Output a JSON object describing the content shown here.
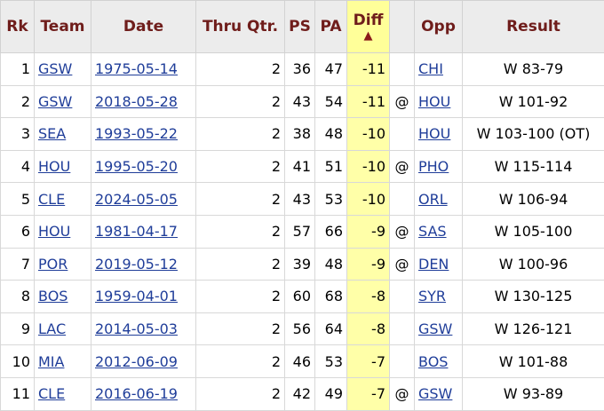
{
  "headers": {
    "rk": "Rk",
    "team": "Team",
    "date": "Date",
    "thru": "Thru Qtr.",
    "ps": "PS",
    "pa": "PA",
    "diff": "Diff",
    "diff_sort_indicator": "▲",
    "loc": "",
    "opp": "Opp",
    "result": "Result"
  },
  "rows": [
    {
      "rk": "1",
      "team": "GSW",
      "date": "1975-05-14",
      "thru": "2",
      "ps": "36",
      "pa": "47",
      "diff": "-11",
      "loc": "",
      "opp": "CHI",
      "result": "W 83-79"
    },
    {
      "rk": "2",
      "team": "GSW",
      "date": "2018-05-28",
      "thru": "2",
      "ps": "43",
      "pa": "54",
      "diff": "-11",
      "loc": "@",
      "opp": "HOU",
      "result": "W 101-92"
    },
    {
      "rk": "3",
      "team": "SEA",
      "date": "1993-05-22",
      "thru": "2",
      "ps": "38",
      "pa": "48",
      "diff": "-10",
      "loc": "",
      "opp": "HOU",
      "result": "W 103-100 (OT)"
    },
    {
      "rk": "4",
      "team": "HOU",
      "date": "1995-05-20",
      "thru": "2",
      "ps": "41",
      "pa": "51",
      "diff": "-10",
      "loc": "@",
      "opp": "PHO",
      "result": "W 115-114"
    },
    {
      "rk": "5",
      "team": "CLE",
      "date": "2024-05-05",
      "thru": "2",
      "ps": "43",
      "pa": "53",
      "diff": "-10",
      "loc": "",
      "opp": "ORL",
      "result": "W 106-94"
    },
    {
      "rk": "6",
      "team": "HOU",
      "date": "1981-04-17",
      "thru": "2",
      "ps": "57",
      "pa": "66",
      "diff": "-9",
      "loc": "@",
      "opp": "SAS",
      "result": "W 105-100"
    },
    {
      "rk": "7",
      "team": "POR",
      "date": "2019-05-12",
      "thru": "2",
      "ps": "39",
      "pa": "48",
      "diff": "-9",
      "loc": "@",
      "opp": "DEN",
      "result": "W 100-96"
    },
    {
      "rk": "8",
      "team": "BOS",
      "date": "1959-04-01",
      "thru": "2",
      "ps": "60",
      "pa": "68",
      "diff": "-8",
      "loc": "",
      "opp": "SYR",
      "result": "W 130-125"
    },
    {
      "rk": "9",
      "team": "LAC",
      "date": "2014-05-03",
      "thru": "2",
      "ps": "56",
      "pa": "64",
      "diff": "-8",
      "loc": "",
      "opp": "GSW",
      "result": "W 126-121"
    },
    {
      "rk": "10",
      "team": "MIA",
      "date": "2012-06-09",
      "thru": "2",
      "ps": "46",
      "pa": "53",
      "diff": "-7",
      "loc": "",
      "opp": "BOS",
      "result": "W 101-88"
    },
    {
      "rk": "11",
      "team": "CLE",
      "date": "2016-06-19",
      "thru": "2",
      "ps": "42",
      "pa": "49",
      "diff": "-7",
      "loc": "@",
      "opp": "GSW",
      "result": "W 93-89"
    }
  ],
  "colors": {
    "header_text": "#6f1d1b",
    "header_bg": "#ececec",
    "sorted_bg": "#ffffa8",
    "link": "#1f3d99"
  }
}
